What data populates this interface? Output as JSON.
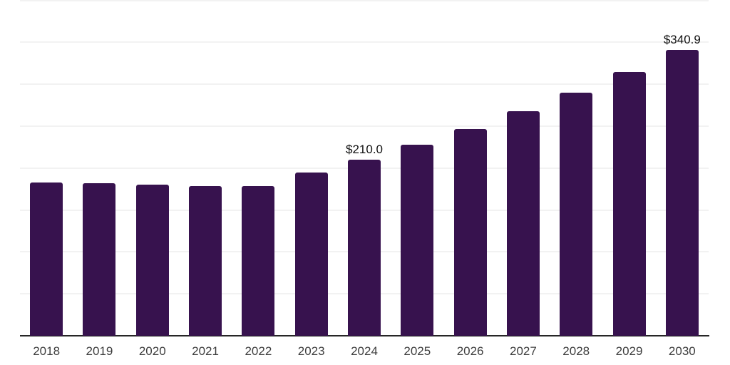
{
  "chart_data": {
    "type": "bar",
    "title": "",
    "xlabel": "",
    "ylabel": "",
    "categories": [
      "2018",
      "2019",
      "2020",
      "2021",
      "2022",
      "2023",
      "2024",
      "2025",
      "2026",
      "2027",
      "2028",
      "2029",
      "2030"
    ],
    "values": [
      182.8,
      181.9,
      180.2,
      178.9,
      178.1,
      194.7,
      210.0,
      227.7,
      246.6,
      268.0,
      289.9,
      314.9,
      340.9
    ],
    "point_labels": [
      "",
      "",
      "",
      "",
      "",
      "",
      "$210.0",
      "",
      "",
      "",
      "",
      "",
      "$340.9"
    ],
    "ylim": [
      0,
      400
    ],
    "gridline_step": 50,
    "grid": "horizontal-only",
    "legend": "none",
    "colors": {
      "bar": "#37124E",
      "axis_line": "#262626",
      "gridline": "#f2f2f2",
      "value_label": "#111111",
      "tick_label": "#3d3d3d",
      "background": "#ffffff"
    }
  }
}
